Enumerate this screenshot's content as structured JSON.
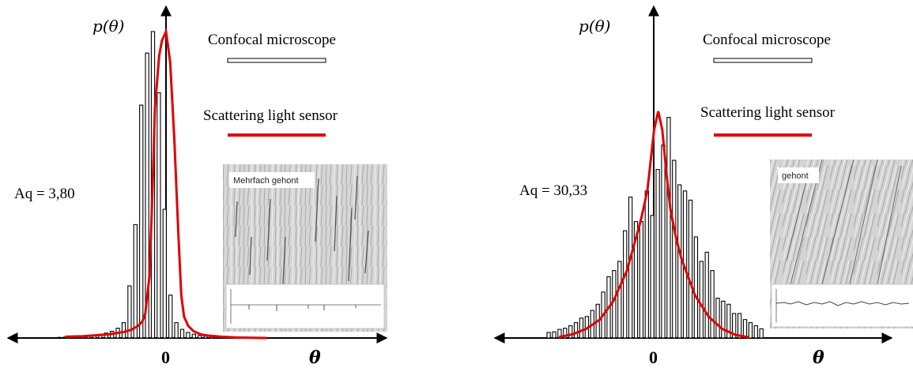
{
  "chart_data": [
    {
      "type": "bar",
      "x_range": [
        -8,
        8
      ],
      "y_range": [
        0,
        1
      ],
      "axis_labels": {
        "y": "p(θ)",
        "x": "θ",
        "origin": "0"
      },
      "legend": [
        {
          "label": "Confocal microscope",
          "style": "outlined-bar"
        },
        {
          "label": "Scattering light sensor",
          "style": "red-line"
        }
      ],
      "annotation": "Aq = 3,80",
      "inset_label": "Mehrfach gehont",
      "bar_values": [
        0.002,
        0.003,
        0.004,
        0.005,
        0.006,
        0.007,
        0.009,
        0.012,
        0.016,
        0.022,
        0.032,
        0.05,
        0.17,
        0.37,
        0.76,
        0.93,
        1.0,
        0.8,
        0.42,
        0.14,
        0.05,
        0.028,
        0.018,
        0.012,
        0.008,
        0.006,
        0.004,
        0.003
      ],
      "curve": {
        "x": [
          -7.3,
          -6,
          -5,
          -4,
          -3,
          -2.5,
          -2,
          -1.7,
          -1.5,
          -1.2,
          -1,
          -0.8,
          -0.5,
          -0.3,
          0,
          0.3,
          0.6,
          0.9,
          1.1,
          1.3,
          1.6,
          2,
          2.5,
          3,
          4,
          5,
          6,
          7.3
        ],
        "y": [
          0.004,
          0.006,
          0.009,
          0.013,
          0.02,
          0.027,
          0.04,
          0.055,
          0.08,
          0.2,
          0.45,
          0.75,
          0.92,
          0.97,
          1.0,
          0.9,
          0.65,
          0.33,
          0.14,
          0.07,
          0.04,
          0.022,
          0.012,
          0.008,
          0.004,
          0.002,
          0.001,
          0.0
        ]
      }
    },
    {
      "type": "bar",
      "x_range": [
        -8,
        8
      ],
      "y_range": [
        0,
        1
      ],
      "axis_labels": {
        "y": "p(θ)",
        "x": "θ",
        "origin": "0"
      },
      "legend": [
        {
          "label": "Confocal microscope",
          "style": "outlined-bar"
        },
        {
          "label": "Scattering light sensor",
          "style": "red-line"
        }
      ],
      "annotation": "Aq = 30,33",
      "inset_label": "gehont",
      "bar_values": [
        0.018,
        0.02,
        0.028,
        0.032,
        0.04,
        0.05,
        0.065,
        0.07,
        0.09,
        0.11,
        0.15,
        0.2,
        0.22,
        0.25,
        0.35,
        0.46,
        0.38,
        0.38,
        0.48,
        0.4,
        0.55,
        0.63,
        0.72,
        0.58,
        0.5,
        0.48,
        0.45,
        0.33,
        0.25,
        0.28,
        0.22,
        0.13,
        0.12,
        0.11,
        0.08,
        0.08,
        0.06,
        0.05,
        0.04,
        0.03
      ],
      "curve": {
        "x": [
          -7,
          -6,
          -5,
          -4,
          -3,
          -2.5,
          -2,
          -1.5,
          -1,
          -0.5,
          0,
          0.3,
          0.6,
          0.9,
          1.2,
          1.6,
          2,
          2.5,
          3,
          4,
          5,
          6,
          7
        ],
        "y": [
          0.003,
          0.012,
          0.03,
          0.06,
          0.12,
          0.17,
          0.22,
          0.3,
          0.38,
          0.48,
          0.68,
          0.74,
          0.68,
          0.54,
          0.42,
          0.33,
          0.26,
          0.2,
          0.14,
          0.07,
          0.03,
          0.01,
          0.002
        ]
      }
    }
  ]
}
